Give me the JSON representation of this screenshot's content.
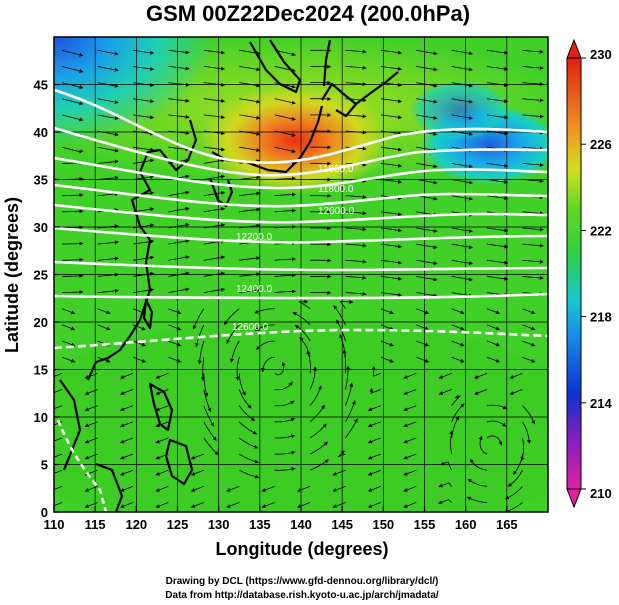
{
  "title": "GSM 00Z22Dec2024 (200.0hPa)",
  "xlabel": "Longitude (degrees)",
  "ylabel": "Latitude  (degrees)",
  "x_ticks": [
    "110",
    "115",
    "120",
    "125",
    "130",
    "135",
    "140",
    "145",
    "150",
    "155",
    "160",
    "165"
  ],
  "y_ticks": [
    "0",
    "5",
    "10",
    "15",
    "20",
    "25",
    "30",
    "35",
    "40",
    "45"
  ],
  "colorbar": {
    "ticks": [
      "230",
      "226",
      "222",
      "218",
      "214",
      "210"
    ],
    "min": 210,
    "max": 230
  },
  "contour_labels": [
    "11600.0",
    "11800.0",
    "12000.0",
    "12200.0",
    "12400.0",
    "12600.0"
  ],
  "credits": {
    "line1": "Drawing by DCL (https://www.gfd-dennou.org/library/dcl/)",
    "line2": "Data from http://database.rish.kyoto-u.ac.jp/arch/jmadata/"
  },
  "chart_data": {
    "type": "heatmap",
    "title": "GSM 00Z22Dec2024 (200.0hPa)",
    "xlabel": "Longitude (degrees)",
    "ylabel": "Latitude  (degrees)",
    "xlim": [
      110,
      170
    ],
    "ylim": [
      0,
      50
    ],
    "colorbar_range": [
      210,
      230
    ],
    "colorbar_ticks": [
      210,
      214,
      218,
      222,
      226,
      230
    ],
    "colors": {
      "magenta": "#e020a0",
      "blue": "#1030d0",
      "cyan": "#18c8e0",
      "green": "#40d020",
      "yellow": "#d0e020",
      "orange": "#f08020",
      "red": "#e02010"
    },
    "features": [
      {
        "name": "warm max",
        "lon": 140,
        "lat": 40,
        "value": 228
      },
      {
        "name": "cold min",
        "lon": 162,
        "lat": 38,
        "value": 216
      },
      {
        "name": "cold corner",
        "lon": 111,
        "lat": 48,
        "value": 216
      },
      {
        "name": "background",
        "value": 222
      }
    ],
    "contour_levels": [
      11600,
      11800,
      12000,
      12200,
      12400,
      12600
    ],
    "grid": true
  }
}
